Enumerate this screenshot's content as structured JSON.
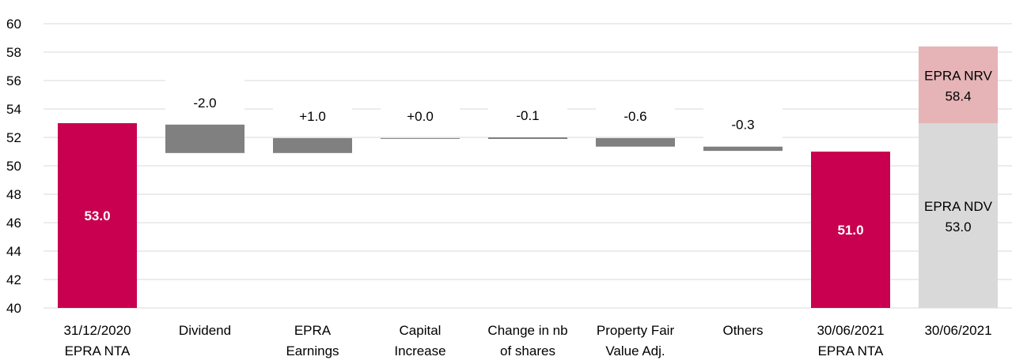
{
  "chart_data": {
    "type": "bar",
    "subtype": "waterfall",
    "ylim": [
      40,
      60
    ],
    "yticks": [
      40,
      42,
      44,
      46,
      48,
      50,
      52,
      54,
      56,
      58,
      60
    ],
    "grid": true,
    "colors": {
      "total": "#c8004f",
      "delta": "#808080",
      "ndv": "#d9d9d9",
      "nrv": "#e6b4b6",
      "label_bg": "#ffffff"
    },
    "categories": [
      [
        "31/12/2020",
        "EPRA NTA"
      ],
      [
        "Dividend"
      ],
      [
        "EPRA",
        "Earnings"
      ],
      [
        "Capital",
        "Increase"
      ],
      [
        "Change in nb",
        "of shares"
      ],
      [
        "Property Fair",
        "Value Adj."
      ],
      [
        "Others"
      ],
      [
        "30/06/2021",
        "EPRA NTA"
      ],
      [
        "30/06/2021"
      ]
    ],
    "bars": [
      {
        "kind": "total",
        "low": 40,
        "high": 53.0,
        "label": "53.0"
      },
      {
        "kind": "delta",
        "low": 50.9,
        "high": 52.9,
        "label": "-2.0"
      },
      {
        "kind": "delta",
        "low": 50.9,
        "high": 51.95,
        "label": "+1.0"
      },
      {
        "kind": "delta",
        "low": 51.95,
        "high": 51.95,
        "label": "+0.0"
      },
      {
        "kind": "delta",
        "low": 51.93,
        "high": 52.0,
        "label": "-0.1"
      },
      {
        "kind": "delta",
        "low": 51.35,
        "high": 51.95,
        "label": "-0.6"
      },
      {
        "kind": "delta",
        "low": 51.05,
        "high": 51.35,
        "label": "-0.3"
      },
      {
        "kind": "total",
        "low": 40,
        "high": 51.0,
        "label": "51.0"
      },
      {
        "kind": "stack",
        "segments": [
          {
            "kind": "ndv",
            "low": 40,
            "high": 53.0,
            "label": [
              "EPRA NDV",
              "53.0"
            ]
          },
          {
            "kind": "nrv",
            "low": 53.0,
            "high": 58.4,
            "label": [
              "EPRA NRV",
              "58.4"
            ]
          }
        ]
      }
    ]
  }
}
